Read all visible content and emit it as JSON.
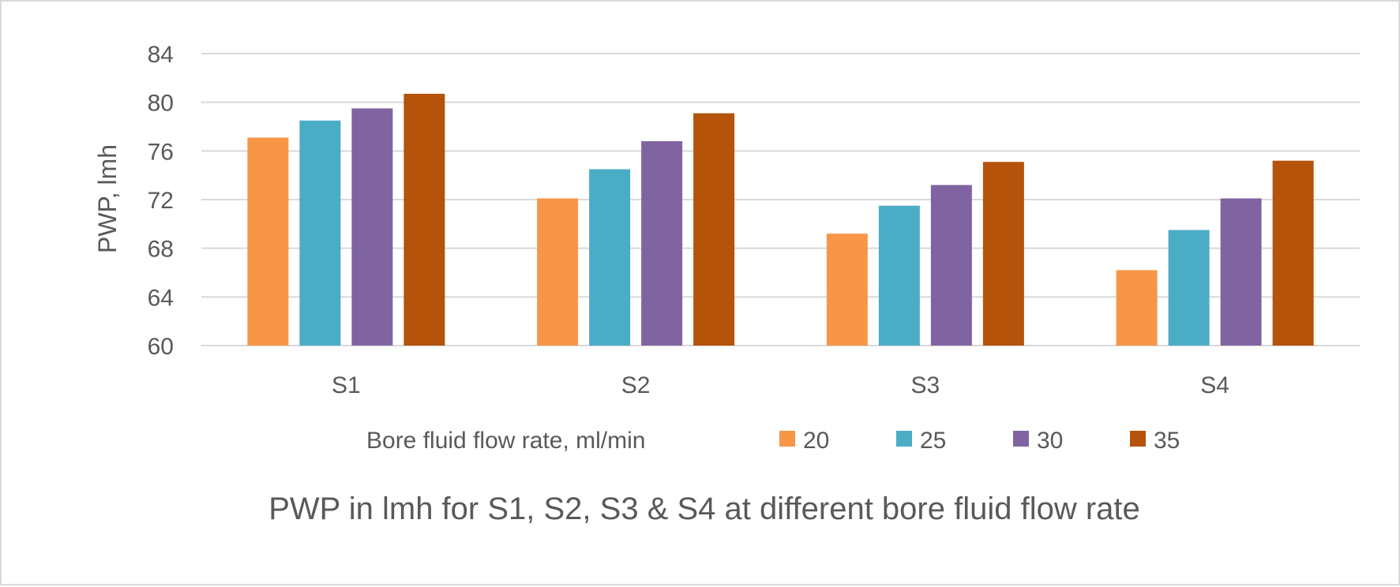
{
  "chart_data": {
    "type": "bar",
    "title": "PWP in lmh for S1, S2, S3 & S4 at different bore fluid flow rate",
    "xlabel": "",
    "ylabel": "PWP, lmh",
    "ylim": [
      60,
      84
    ],
    "yticks": [
      60,
      64,
      68,
      72,
      76,
      80,
      84
    ],
    "ytick_labels": [
      "60",
      "64",
      "68",
      "72",
      "76",
      "80",
      "84"
    ],
    "grid": true,
    "categories": [
      "S1",
      "S2",
      "S3",
      "S4"
    ],
    "legend_title": "Bore fluid flow rate, ml/min",
    "legend_position": "bottom",
    "series": [
      {
        "name": "20",
        "color": "#F79646",
        "values": [
          77.1,
          72.1,
          69.2,
          66.2
        ]
      },
      {
        "name": "25",
        "color": "#4BACC6",
        "values": [
          78.5,
          74.5,
          71.5,
          69.5
        ]
      },
      {
        "name": "30",
        "color": "#8064A2",
        "values": [
          79.5,
          76.8,
          73.2,
          72.1
        ]
      },
      {
        "name": "35",
        "color": "#B45309",
        "values": [
          80.7,
          79.1,
          75.1,
          75.2
        ]
      }
    ]
  }
}
